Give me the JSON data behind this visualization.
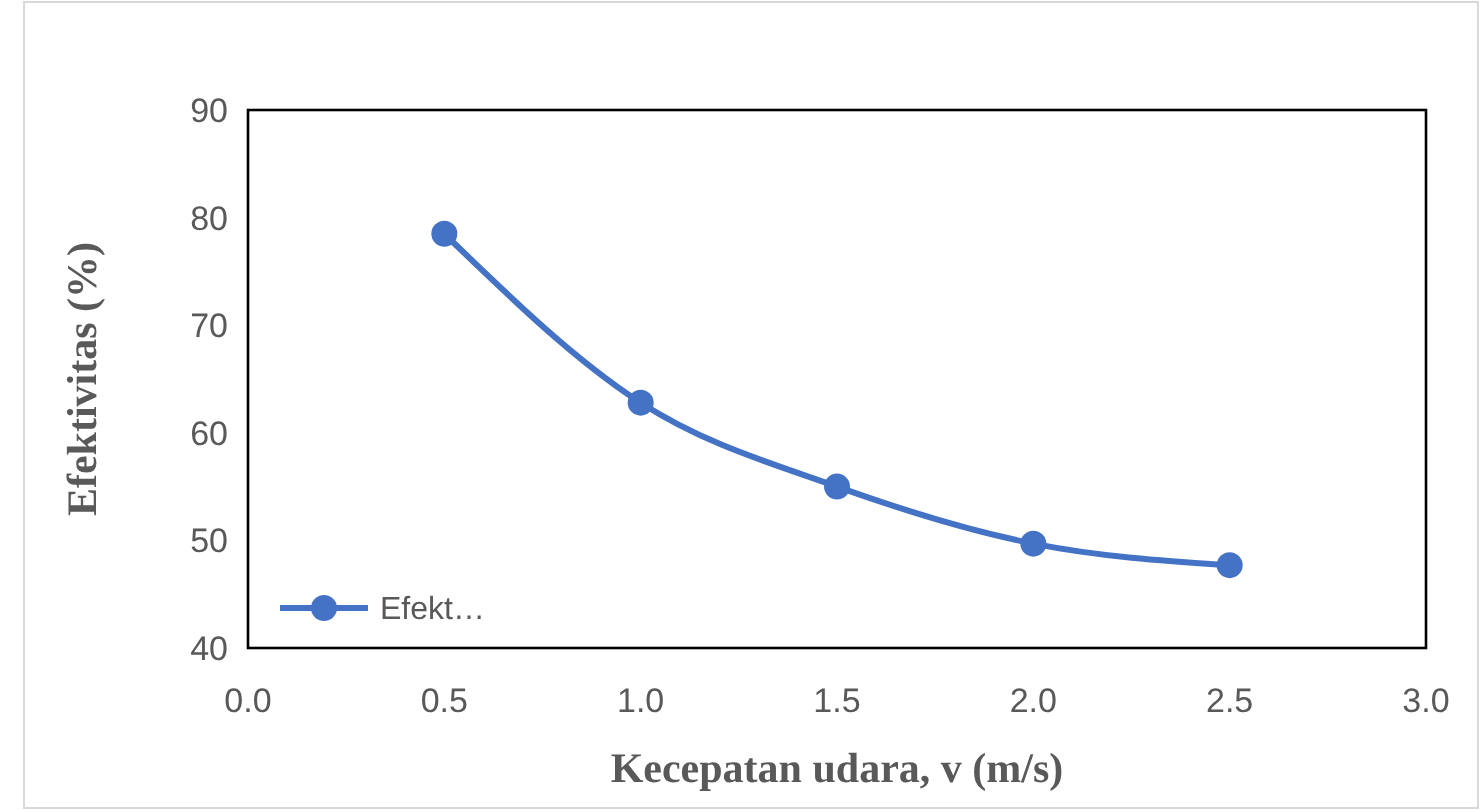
{
  "chart_data": {
    "type": "line",
    "xlabel": "Kecepatan udara, v (m/s)",
    "ylabel": "Efektivitas (%)",
    "x": [
      0.5,
      1.0,
      1.5,
      2.0,
      2.5
    ],
    "series": [
      {
        "name": "Efekt…",
        "color": "#4472c4",
        "values": [
          78.5,
          62.8,
          55.0,
          49.7,
          47.7
        ]
      }
    ],
    "xlim": [
      0,
      3
    ],
    "xticks": [
      {
        "value": 0,
        "label": "0.0"
      },
      {
        "value": 0.5,
        "label": "0.5"
      },
      {
        "value": 1,
        "label": "1.0"
      },
      {
        "value": 1.5,
        "label": "1.5"
      },
      {
        "value": 2,
        "label": "2.0"
      },
      {
        "value": 2.5,
        "label": "2.5"
      },
      {
        "value": 3,
        "label": "3.0"
      }
    ],
    "ylim": [
      40,
      90
    ],
    "yticks": [
      40,
      50,
      60,
      70,
      80,
      90
    ],
    "grid": false,
    "legend": "bottom left",
    "marker": "circle",
    "line_style": "solid"
  }
}
